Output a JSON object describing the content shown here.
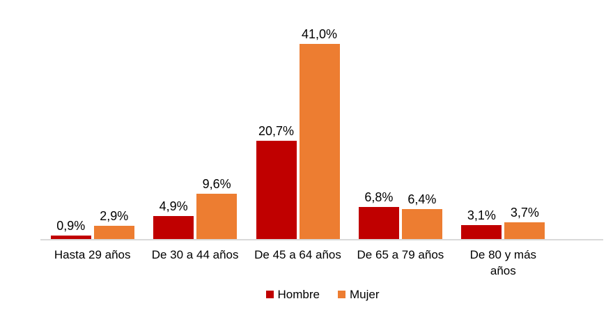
{
  "chart_data": {
    "type": "bar",
    "title": "",
    "categories": [
      "Hasta 29 años",
      "De 30 a 44 años",
      "De 45 a 64 años",
      "De 65 a 79 años",
      "De 80 y más\naños"
    ],
    "series": [
      {
        "name": "Hombre",
        "color": "#C00000",
        "values": [
          0.9,
          4.9,
          20.7,
          6.8,
          3.1
        ],
        "labels": [
          "0,9%",
          "4,9%",
          "20,7%",
          "6,8%",
          "3,1%"
        ]
      },
      {
        "name": "Mujer",
        "color": "#ED7D31",
        "values": [
          2.9,
          9.6,
          41.0,
          6.4,
          3.7
        ],
        "labels": [
          "2,9%",
          "9,6%",
          "41,0%",
          "6,4%",
          "3,7%"
        ]
      }
    ],
    "ylim": [
      0,
      41
    ],
    "grid": false,
    "y_axis_visible": false,
    "legend_position": "bottom",
    "axis_line_color": "#D9D9D9",
    "text_color": "#000000",
    "value_label_format": "comma-decimal percent"
  }
}
